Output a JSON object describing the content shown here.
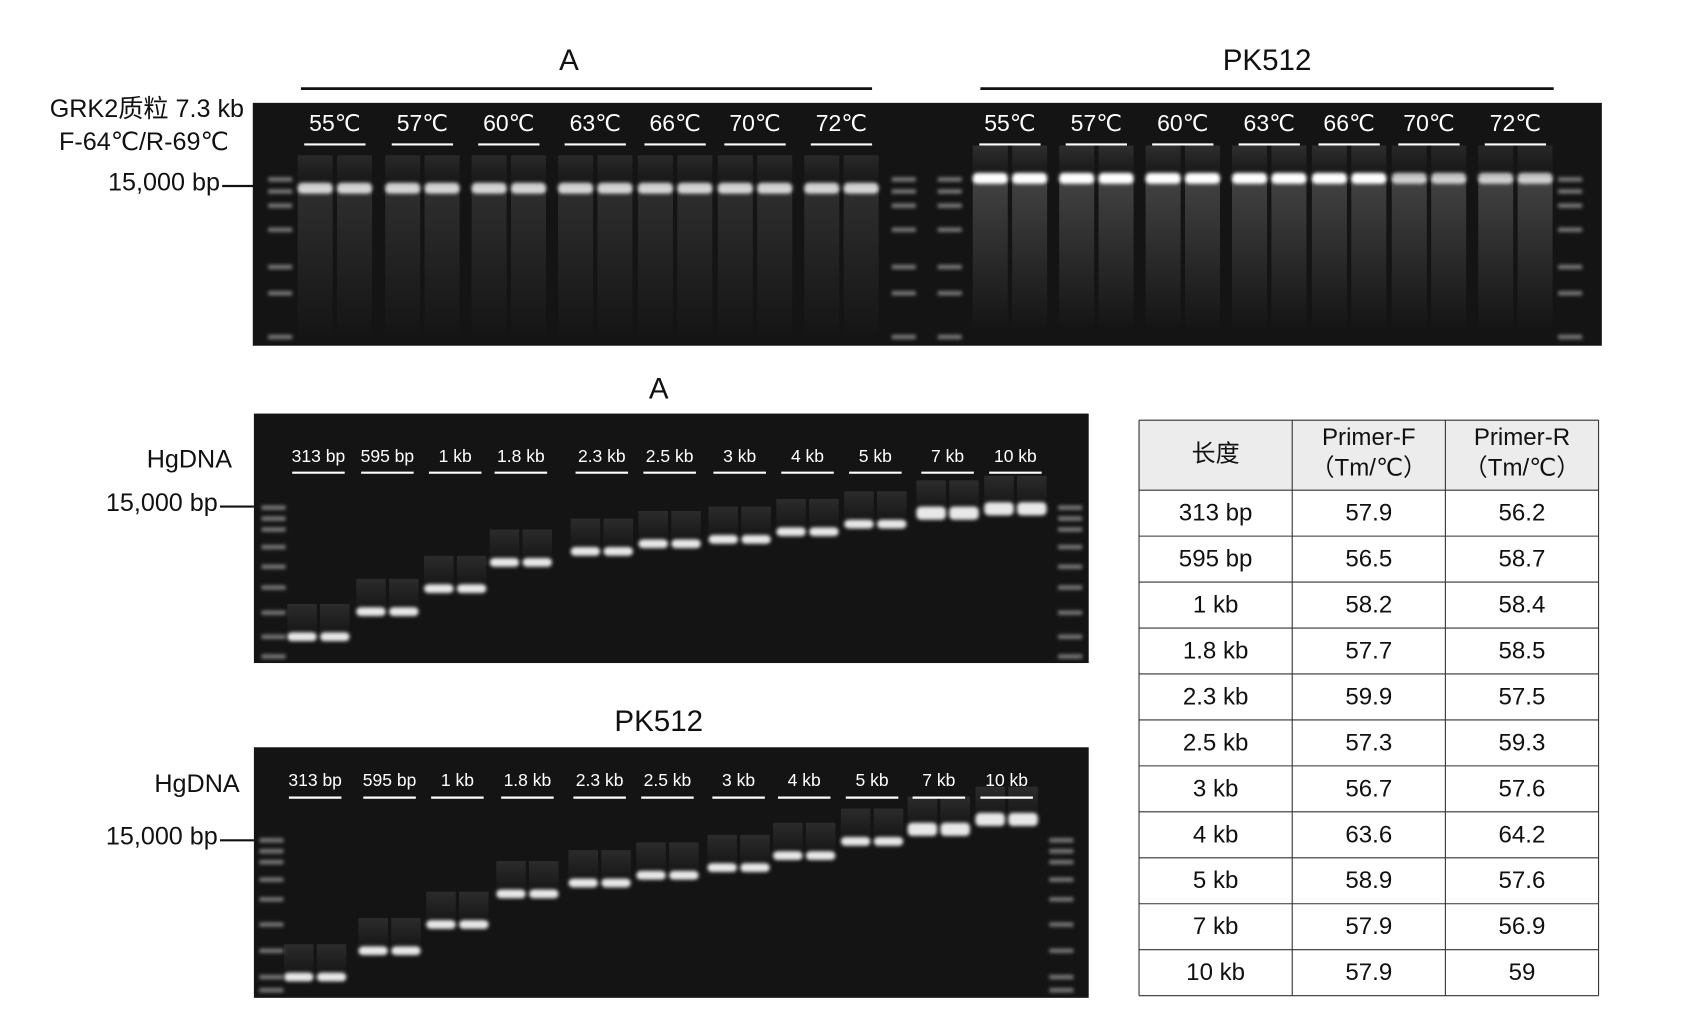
{
  "top_gel": {
    "sample": "GRK2质粒 7.3 kb",
    "primers": "F-64℃/R-69℃",
    "marker": "15,000 bp",
    "groups": [
      {
        "name": "A",
        "lanes": [
          "55℃",
          "57℃",
          "60℃",
          "63℃",
          "66℃",
          "70℃",
          "72℃"
        ]
      },
      {
        "name": "PK512",
        "lanes": [
          "55℃",
          "57℃",
          "60℃",
          "63℃",
          "66℃",
          "70℃",
          "72℃"
        ]
      }
    ]
  },
  "gel_a": {
    "title": "A",
    "sample": "HgDNA",
    "marker": "15,000 bp",
    "lanes": [
      "313 bp",
      "595 bp",
      "1 kb",
      "1.8 kb",
      "2.3 kb",
      "2.5 kb",
      "3 kb",
      "4 kb",
      "5 kb",
      "7 kb",
      "10 kb"
    ]
  },
  "gel_pk512": {
    "title": "PK512",
    "sample": "HgDNA",
    "marker": "15,000 bp",
    "lanes": [
      "313 bp",
      "595 bp",
      "1 kb",
      "1.8 kb",
      "2.3 kb",
      "2.5 kb",
      "3 kb",
      "4 kb",
      "5 kb",
      "7 kb",
      "10 kb"
    ]
  },
  "table": {
    "header": [
      "长度",
      [
        "Primer-F",
        "（Tm/℃）"
      ],
      [
        "Primer-R",
        "（Tm/℃）"
      ]
    ],
    "rows": [
      [
        "313 bp",
        "57.9",
        "56.2"
      ],
      [
        "595 bp",
        "56.5",
        "58.7"
      ],
      [
        "1 kb",
        "58.2",
        "58.4"
      ],
      [
        "1.8 kb",
        "57.7",
        "58.5"
      ],
      [
        "2.3 kb",
        "59.9",
        "57.5"
      ],
      [
        "2.5 kb",
        "57.3",
        "59.3"
      ],
      [
        "3 kb",
        "56.7",
        "57.6"
      ],
      [
        "4 kb",
        "63.6",
        "64.2"
      ],
      [
        "5 kb",
        "58.9",
        "57.6"
      ],
      [
        "7 kb",
        "57.9",
        "56.9"
      ],
      [
        "10 kb",
        "57.9",
        "59"
      ]
    ]
  }
}
